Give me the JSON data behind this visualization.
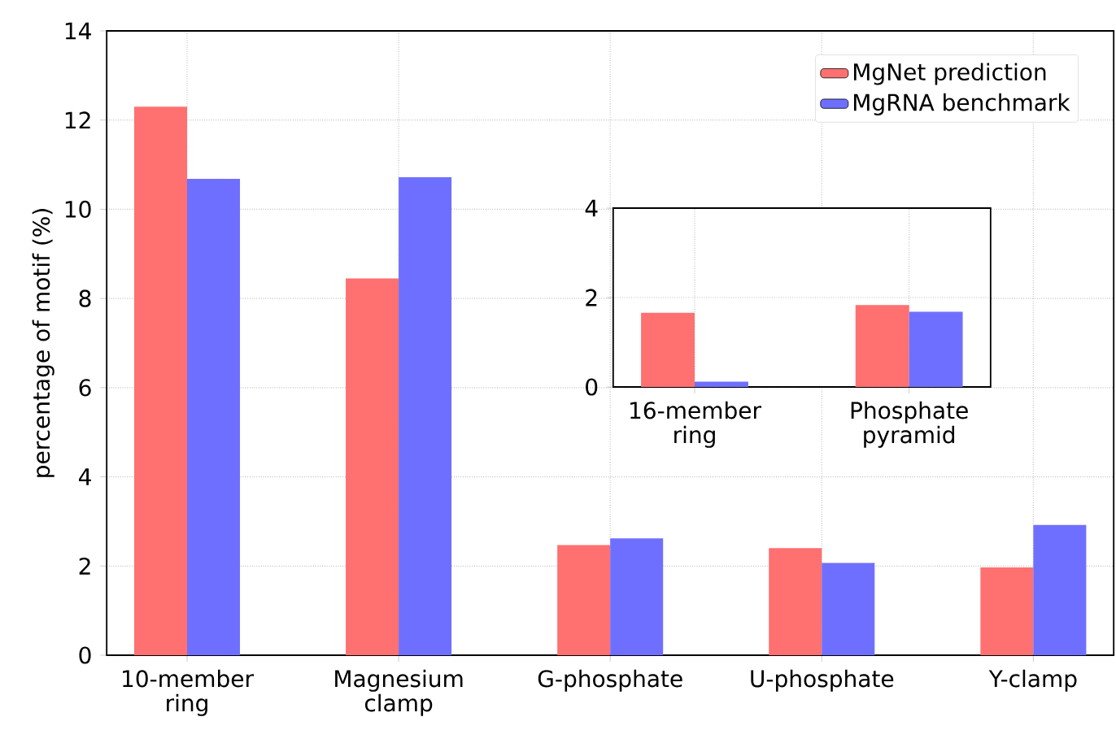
{
  "chart_data": [
    {
      "type": "bar",
      "ylabel": "percentage of motif (%)",
      "categories": [
        "10-member ring",
        "Magnesium clamp",
        "G-phosphate",
        "U-phosphate",
        "Y-clamp"
      ],
      "series": [
        {
          "name": "MgNet prediction",
          "color": "#ff7070",
          "values": [
            12.3,
            8.45,
            2.47,
            2.4,
            1.97
          ]
        },
        {
          "name": "MgRNA benchmark",
          "color": "#6f6fff",
          "values": [
            10.68,
            10.72,
            2.62,
            2.07,
            2.92
          ]
        }
      ],
      "ylim": [
        0,
        14
      ],
      "yticks": [
        0,
        2,
        4,
        6,
        8,
        10,
        12,
        14
      ],
      "grid": true,
      "legend": "top right"
    },
    {
      "type": "bar",
      "categories": [
        "16-member ring",
        "Phosphate pyramid"
      ],
      "series": [
        {
          "color": "#ff7070",
          "values": [
            1.66,
            1.83
          ]
        },
        {
          "color": "#6f6fff",
          "values": [
            0.12,
            1.68
          ]
        }
      ],
      "ylim": [
        0,
        4
      ],
      "yticks": [
        0,
        2,
        4
      ],
      "grid": true
    }
  ]
}
